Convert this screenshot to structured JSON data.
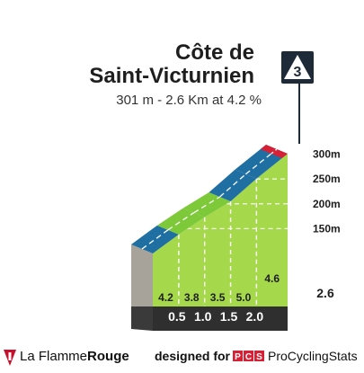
{
  "climb": {
    "name_line1": "Côte de",
    "name_line2": "Saint-Victurnien",
    "summary": "301 m - 2.6 Km at 4.2 %",
    "category_badge": "3"
  },
  "chart_data": {
    "type": "area",
    "title": "Côte de Saint-Victurnien",
    "subtitle": "301 m - 2.6 Km at 4.2 %",
    "x_unit": "km",
    "y_unit": "m",
    "distance_labels": [
      "0.5",
      "1.0",
      "1.5",
      "2.0",
      "2.6"
    ],
    "distance_values": [
      0.5,
      1.0,
      1.5,
      2.0,
      2.6
    ],
    "elevation_ticks": [
      "150m",
      "200m",
      "250m",
      "300m"
    ],
    "elevation_tick_values": [
      150,
      200,
      250,
      300
    ],
    "ylim": [
      100,
      310
    ],
    "segments": [
      {
        "start_km": 0.0,
        "end_km": 0.5,
        "gradient_pct": 4.2,
        "gradient_label": "4.2",
        "color": "#1f6fa3"
      },
      {
        "start_km": 0.5,
        "end_km": 1.0,
        "gradient_pct": 3.8,
        "gradient_label": "3.8",
        "color": "#7dc93a"
      },
      {
        "start_km": 1.0,
        "end_km": 1.5,
        "gradient_pct": 3.5,
        "gradient_label": "3.5",
        "color": "#7dc93a"
      },
      {
        "start_km": 1.5,
        "end_km": 2.0,
        "gradient_pct": 5.0,
        "gradient_label": "5.0",
        "color": "#1f6fa3"
      },
      {
        "start_km": 2.0,
        "end_km": 2.6,
        "gradient_pct": 4.6,
        "gradient_label": "4.6",
        "color": "#1f6fa3"
      }
    ],
    "summit_marker_color": "#d62035",
    "body_color": "#a5d84b",
    "side_color": "#a8a39a",
    "base_color": "#2f2f2f",
    "grid": "dashed-white"
  },
  "footer": {
    "brand_prefix": "La Flamme",
    "brand_suffix": "Rouge",
    "designed_for": "designed for",
    "pcs_logo": "PCS",
    "pcs_name": "ProCyclingStats"
  }
}
